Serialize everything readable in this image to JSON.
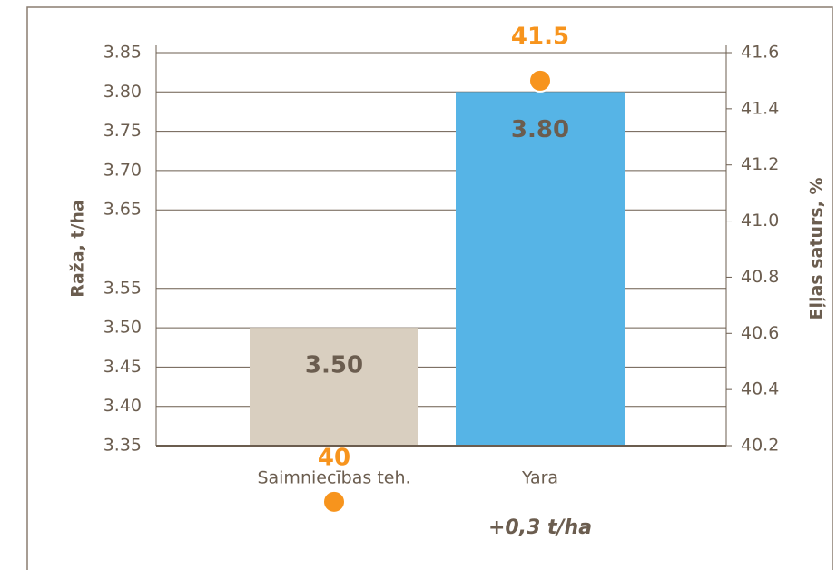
{
  "chart_data": {
    "type": "bar",
    "categories": [
      "Saimniecības teh.",
      "Yara"
    ],
    "series": [
      {
        "name": "Raža, t/ha",
        "colors": [
          "#d9cfc0",
          "#56b4e6"
        ],
        "values": [
          3.5,
          3.8
        ],
        "value_labels": [
          "3.50",
          "3.80"
        ]
      },
      {
        "name": "Eļļas saturs, %",
        "type": "scatter",
        "axis": "y2",
        "color": "#f7941d",
        "values": [
          40,
          41.5
        ],
        "value_labels": [
          "40",
          "41.5"
        ]
      }
    ],
    "ylabel": "Raža, t/ha",
    "y2label": "Eļļas saturs, %",
    "ylim": [
      3.35,
      3.85
    ],
    "yticks": [
      {
        "value": 3.35,
        "label": "3.35"
      },
      {
        "value": 3.4,
        "label": "3.40"
      },
      {
        "value": 3.45,
        "label": "3.45"
      },
      {
        "value": 3.5,
        "label": "3.50"
      },
      {
        "value": 3.55,
        "label": "3.55"
      },
      {
        "value": 3.65,
        "label": "3.65"
      },
      {
        "value": 3.7,
        "label": "3.70"
      },
      {
        "value": 3.75,
        "label": "3.75"
      },
      {
        "value": 3.8,
        "label": "3.80"
      },
      {
        "value": 3.85,
        "label": "3.85"
      }
    ],
    "y2lim": [
      40.2,
      41.6
    ],
    "y2ticks": [
      {
        "value": 40.2,
        "label": "40.2"
      },
      {
        "value": 40.4,
        "label": "40.4"
      },
      {
        "value": 40.6,
        "label": "40.6"
      },
      {
        "value": 40.8,
        "label": "40.8"
      },
      {
        "value": 41.0,
        "label": "41.0"
      },
      {
        "value": 41.2,
        "label": "41.2"
      },
      {
        "value": 41.4,
        "label": "41.4"
      },
      {
        "value": 41.6,
        "label": "41.6"
      }
    ],
    "grid": true,
    "annotation": "+0,3 t/ha"
  }
}
